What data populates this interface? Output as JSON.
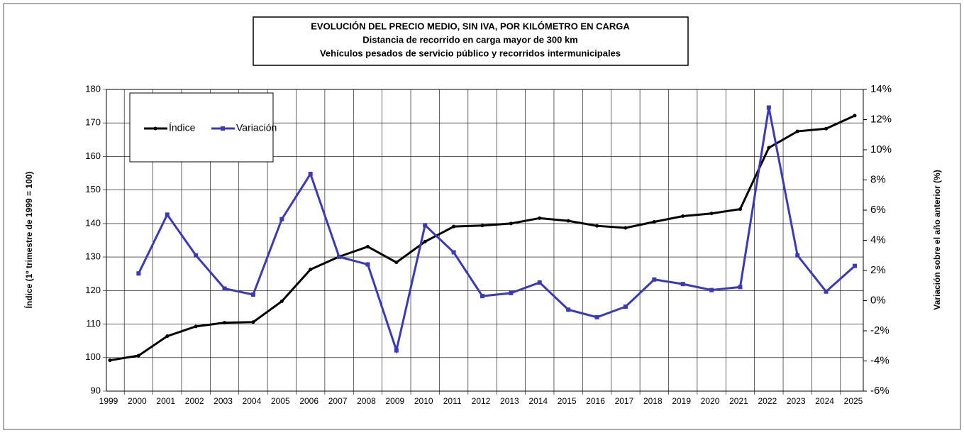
{
  "chart_data": {
    "type": "line",
    "title": "EVOLUCIÓN  DEL PRECIO  MEDIO,  SIN IVA,  POR KILÓMETRO  EN CARGA",
    "subtitle": [
      "Distancia  de recorrido  en carga mayor de 300 km",
      "Vehículos pesados de servicio público y recorridos intermunicipales"
    ],
    "y_label": "Índice (1º trimestre de 1999 = 100)",
    "y2_label": "Variación sobre el año anterior (%)",
    "categories": [
      "1999",
      "2000",
      "2001",
      "2002",
      "2003",
      "2004",
      "2005",
      "2006",
      "2007",
      "2008",
      "2009",
      "2010",
      "2011",
      "2012",
      "2013",
      "2014",
      "2015",
      "2016",
      "2017",
      "2018",
      "2019",
      "2020",
      "2021",
      "2022",
      "2023",
      "2024",
      "2025"
    ],
    "series": [
      {
        "name": "Índice",
        "color": "#000000",
        "axis": "y",
        "values": [
          99.2,
          100.6,
          106.4,
          109.3,
          110.4,
          110.6,
          116.8,
          126.3,
          130.1,
          133.1,
          128.4,
          134.6,
          139.1,
          139.4,
          140.0,
          141.6,
          140.8,
          139.3,
          138.7,
          140.5,
          142.2,
          143.0,
          144.3,
          162.6,
          167.5,
          168.3,
          172.2
        ]
      },
      {
        "name": "Variación",
        "color": "#3a3ab8",
        "axis": "y2",
        "values": [
          null,
          1.8,
          5.7,
          3.0,
          0.8,
          0.4,
          5.4,
          8.4,
          2.9,
          2.4,
          -3.3,
          5.0,
          3.2,
          0.3,
          0.5,
          1.2,
          -0.6,
          -1.1,
          -0.4,
          1.4,
          1.1,
          0.7,
          0.9,
          12.8,
          3.0,
          0.6,
          2.3
        ]
      }
    ],
    "ylim": [
      90,
      180
    ],
    "yticks": [
      90,
      100,
      110,
      120,
      130,
      140,
      150,
      160,
      170,
      180
    ],
    "y2lim": [
      -6,
      14
    ],
    "y2ticks": [
      {
        "value": -6,
        "label": "-6%"
      },
      {
        "value": -4,
        "label": "-4%"
      },
      {
        "value": -2,
        "label": "-2%"
      },
      {
        "value": 0,
        "label": "0%"
      },
      {
        "value": 2,
        "label": "2%"
      },
      {
        "value": 4,
        "label": "4%"
      },
      {
        "value": 6,
        "label": "6%"
      },
      {
        "value": 8,
        "label": "8%"
      },
      {
        "value": 10,
        "label": "10%"
      },
      {
        "value": 12,
        "label": "12%"
      },
      {
        "value": 14,
        "label": "14%"
      }
    ],
    "grid": true
  }
}
